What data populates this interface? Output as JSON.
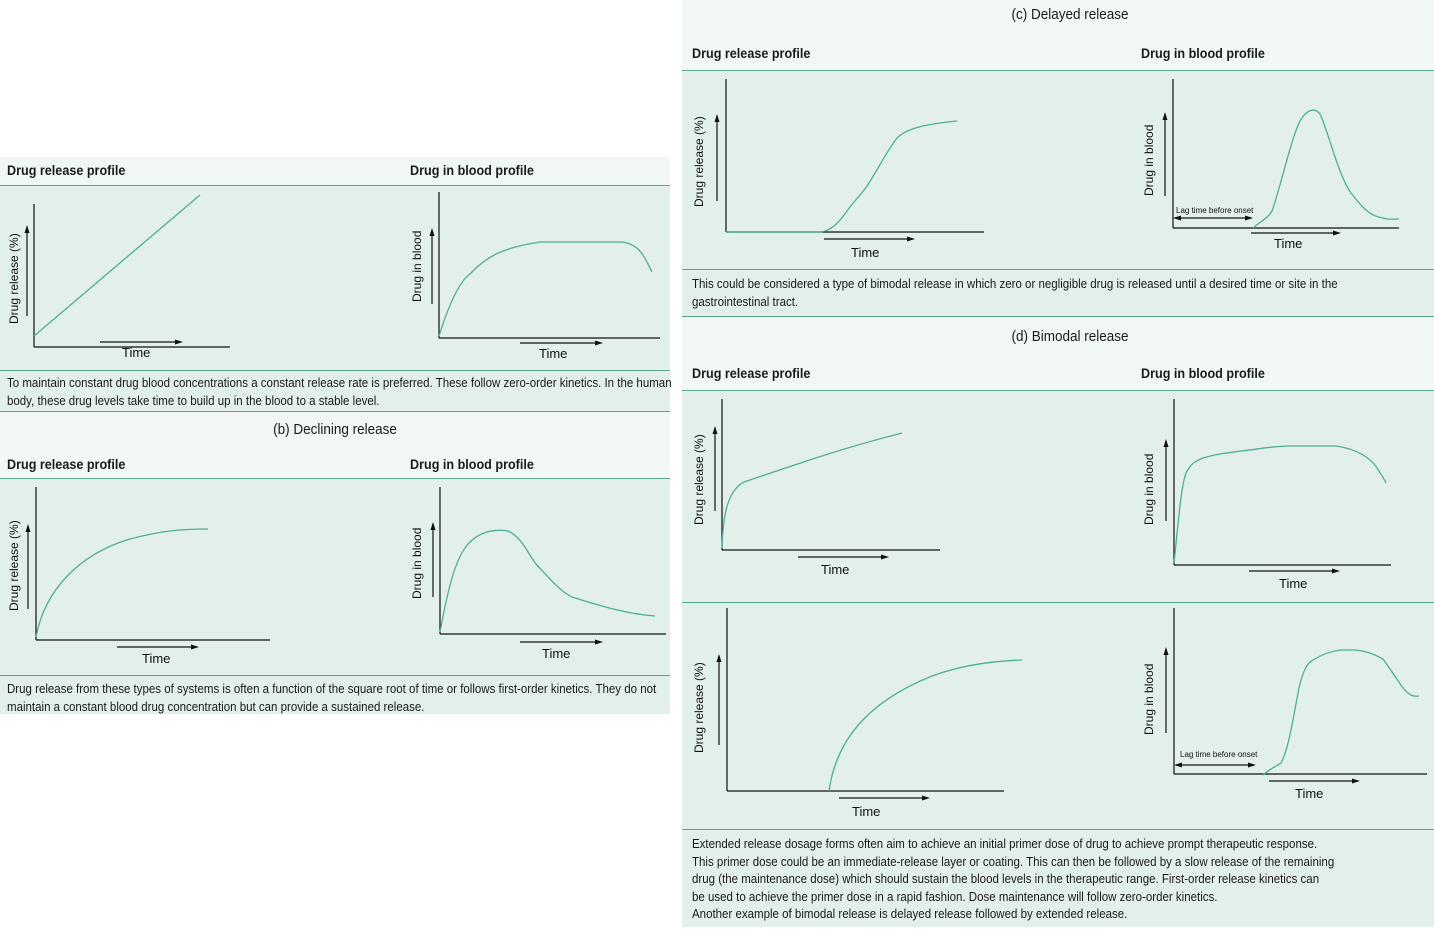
{
  "sections": {
    "a": {
      "header_release": "Drug release profile",
      "header_blood": "Drug in blood profile",
      "release_ylabel": "Drug release (%)",
      "release_xlabel": "Time",
      "blood_ylabel": "Drug in blood",
      "blood_xlabel": "Time",
      "caption": [
        "To maintain constant drug blood concentrations a constant release rate is preferred. These follow zero-order kinetics. In the human",
        "body, these drug levels take time to build up in the blood to a stable level."
      ]
    },
    "b": {
      "title": "(b) Declining release",
      "header_release": "Drug release profile",
      "header_blood": "Drug in blood profile",
      "release_ylabel": "Drug release (%)",
      "release_xlabel": "Time",
      "blood_ylabel": "Drug in blood",
      "blood_xlabel": "Time",
      "caption": [
        "Drug release from these types of systems is often a function of the square root of time or follows first-order kinetics. They do not",
        "maintain a constant blood drug concentration but can provide a sustained release."
      ]
    },
    "c": {
      "title": "(c) Delayed release",
      "header_release": "Drug release profile",
      "header_blood": "Drug in blood profile",
      "release_ylabel": "Drug release (%)",
      "release_xlabel": "Time",
      "blood_ylabel": "Drug in blood",
      "blood_xlabel": "Time",
      "lag_label": "Lag time before onset",
      "caption": [
        "This could be considered a type of bimodal release in which zero or negligible drug is released until a desired time or site in the",
        "gastrointestinal tract."
      ]
    },
    "d": {
      "title": "(d) Bimodal release",
      "header_release": "Drug release profile",
      "header_blood": "Drug in blood profile",
      "release_ylabel": "Drug release (%)",
      "release_xlabel": "Time",
      "blood_ylabel": "Drug in blood",
      "blood_xlabel": "Time",
      "release2_ylabel": "Drug release (%)",
      "release2_xlabel": "Time",
      "blood2_ylabel": "Drug in blood",
      "blood2_xlabel": "Time",
      "lag_label": "Lag time before onset",
      "caption": [
        "Extended release dosage forms often aim to achieve an initial primer dose of drug to achieve prompt therapeutic response.",
        "This primer dose could be an immediate-release layer or coating. This can then be followed by a slow release of the remaining",
        "drug (the maintenance dose) which should sustain the blood levels in the therapeutic range. First-order release kinetics can",
        "be used to achieve the primer dose in a rapid fashion. Dose maintenance will follow zero-order kinetics.",
        "Another example of bimodal release is delayed release followed by extended release."
      ]
    }
  },
  "colors": {
    "panel": "#e3efeb",
    "band": "#f1f7f5",
    "curve": "#4fae97",
    "rule": "#5aa58f"
  }
}
